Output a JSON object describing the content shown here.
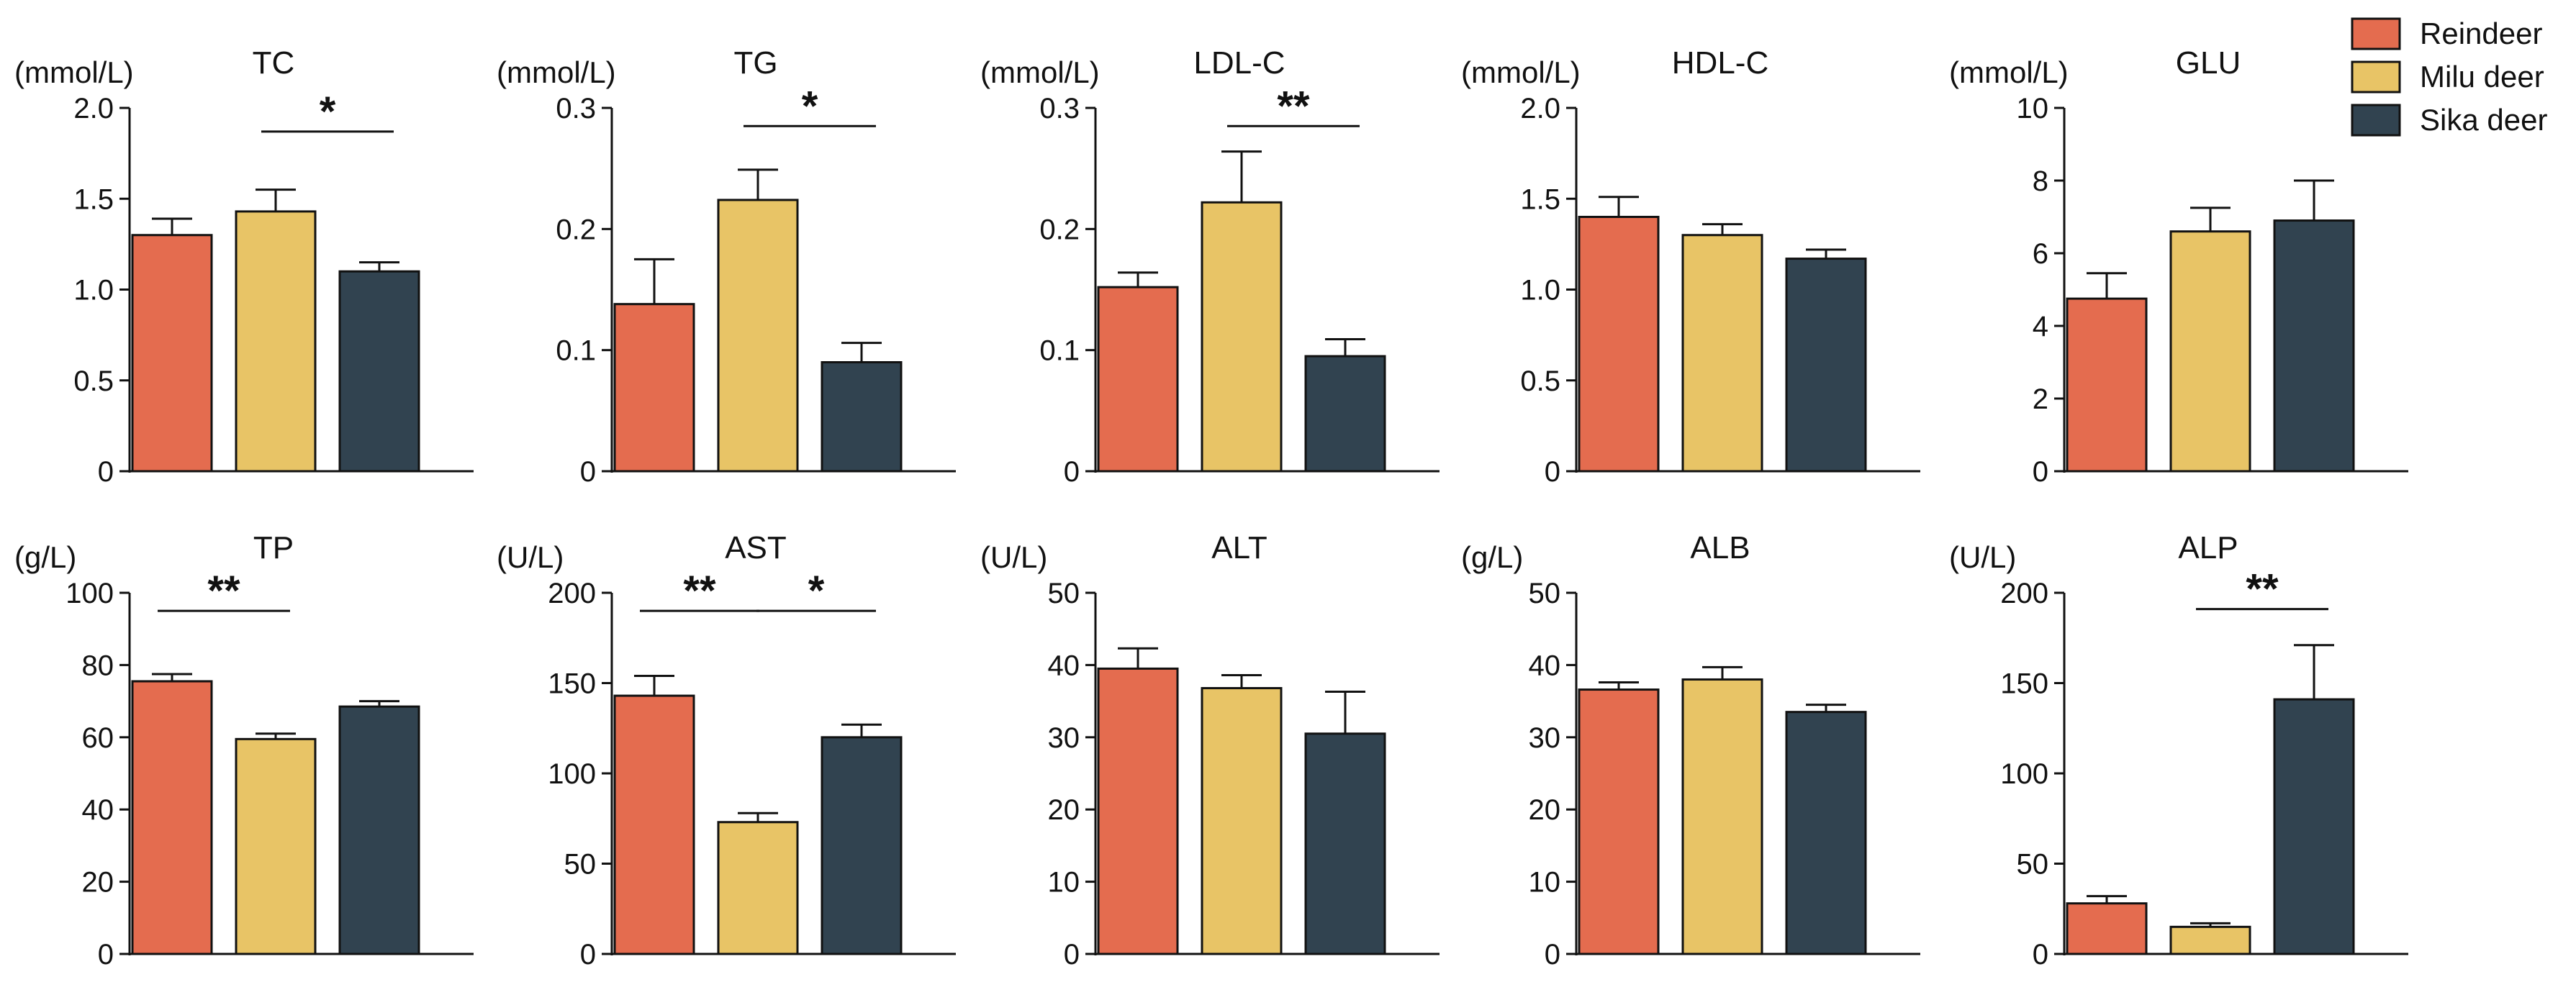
{
  "figure": {
    "legend": {
      "position": "top-right",
      "items": [
        {
          "label": "Reindeer",
          "color": "#E46C4F"
        },
        {
          "label": "Milu deer",
          "color": "#E8C466"
        },
        {
          "label": "Sika deer",
          "color": "#314350"
        }
      ]
    }
  },
  "chart_data": [
    {
      "type": "bar",
      "title": "TC",
      "unit": "(mmol/L)",
      "categories": [
        "Reindeer",
        "Milu deer",
        "Sika deer"
      ],
      "values": [
        1.3,
        1.43,
        1.1
      ],
      "errors": [
        0.09,
        0.12,
        0.05
      ],
      "ylim": [
        0,
        2.0
      ],
      "ticks": [
        0,
        0.5,
        1.0,
        1.5,
        2.0
      ],
      "tick_labels": [
        "0",
        "0.5",
        "1.0",
        "1.5",
        "2.0"
      ],
      "significance": [
        {
          "from": 1,
          "to": 2,
          "label": "*",
          "y": 1.87
        }
      ]
    },
    {
      "type": "bar",
      "title": "TG",
      "unit": "(mmol/L)",
      "categories": [
        "Reindeer",
        "Milu deer",
        "Sika deer"
      ],
      "values": [
        0.138,
        0.224,
        0.09
      ],
      "errors": [
        0.037,
        0.025,
        0.016
      ],
      "ylim": [
        0,
        0.3
      ],
      "ticks": [
        0,
        0.1,
        0.2,
        0.3
      ],
      "tick_labels": [
        "0",
        "0.1",
        "0.2",
        "0.3"
      ],
      "significance": [
        {
          "from": 1,
          "to": 2,
          "label": "*",
          "y": 0.285
        }
      ]
    },
    {
      "type": "bar",
      "title": "LDL-C",
      "unit": "(mmol/L)",
      "categories": [
        "Reindeer",
        "Milu deer",
        "Sika deer"
      ],
      "values": [
        0.152,
        0.222,
        0.095
      ],
      "errors": [
        0.012,
        0.042,
        0.014
      ],
      "ylim": [
        0,
        0.3
      ],
      "ticks": [
        0,
        0.1,
        0.2,
        0.3
      ],
      "tick_labels": [
        "0",
        "0.1",
        "0.2",
        "0.3"
      ],
      "significance": [
        {
          "from": 1,
          "to": 2,
          "label": "**",
          "y": 0.285
        }
      ]
    },
    {
      "type": "bar",
      "title": "HDL-C",
      "unit": "(mmol/L)",
      "categories": [
        "Reindeer",
        "Milu deer",
        "Sika deer"
      ],
      "values": [
        1.4,
        1.3,
        1.17
      ],
      "errors": [
        0.11,
        0.06,
        0.05
      ],
      "ylim": [
        0,
        2.0
      ],
      "ticks": [
        0,
        0.5,
        1.0,
        1.5,
        2.0
      ],
      "tick_labels": [
        "0",
        "0.5",
        "1.0",
        "1.5",
        "2.0"
      ],
      "significance": []
    },
    {
      "type": "bar",
      "title": "GLU",
      "unit": "(mmol/L)",
      "categories": [
        "Reindeer",
        "Milu deer",
        "Sika deer"
      ],
      "values": [
        4.75,
        6.6,
        6.9
      ],
      "errors": [
        0.7,
        0.65,
        1.1
      ],
      "ylim": [
        0,
        10
      ],
      "ticks": [
        0,
        2,
        4,
        6,
        8,
        10
      ],
      "tick_labels": [
        "0",
        "2",
        "4",
        "6",
        "8",
        "10"
      ],
      "significance": []
    },
    {
      "type": "bar",
      "title": "TP",
      "unit": "(g/L)",
      "categories": [
        "Reindeer",
        "Milu deer",
        "Sika deer"
      ],
      "values": [
        75.5,
        59.5,
        68.5
      ],
      "errors": [
        2.0,
        1.5,
        1.5
      ],
      "ylim": [
        0,
        100
      ],
      "ticks": [
        0,
        20,
        40,
        60,
        80,
        100
      ],
      "tick_labels": [
        "0",
        "20",
        "40",
        "60",
        "80",
        "100"
      ],
      "significance": [
        {
          "from": 0,
          "to": 1,
          "label": "**",
          "y": 95
        }
      ]
    },
    {
      "type": "bar",
      "title": "AST",
      "unit": "(U/L)",
      "categories": [
        "Reindeer",
        "Milu deer",
        "Sika deer"
      ],
      "values": [
        143,
        73,
        120
      ],
      "errors": [
        11,
        5,
        7
      ],
      "ylim": [
        0,
        200
      ],
      "ticks": [
        0,
        50,
        100,
        150,
        200
      ],
      "tick_labels": [
        "0",
        "50",
        "100",
        "150",
        "200"
      ],
      "significance": [
        {
          "from": 0,
          "to": 1,
          "label": "**",
          "y": 190
        },
        {
          "from": 1,
          "to": 2,
          "label": "*",
          "y": 190
        }
      ]
    },
    {
      "type": "bar",
      "title": "ALT",
      "unit": "(U/L)",
      "categories": [
        "Reindeer",
        "Milu deer",
        "Sika deer"
      ],
      "values": [
        39.5,
        36.8,
        30.5
      ],
      "errors": [
        2.8,
        1.8,
        5.8
      ],
      "ylim": [
        0,
        50
      ],
      "ticks": [
        0,
        10,
        20,
        30,
        40,
        50
      ],
      "tick_labels": [
        "0",
        "10",
        "20",
        "30",
        "40",
        "50"
      ],
      "significance": []
    },
    {
      "type": "bar",
      "title": "ALB",
      "unit": "(g/L)",
      "categories": [
        "Reindeer",
        "Milu deer",
        "Sika deer"
      ],
      "values": [
        36.6,
        38,
        33.5
      ],
      "errors": [
        1.0,
        1.7,
        1.0
      ],
      "ylim": [
        0,
        50
      ],
      "ticks": [
        0,
        10,
        20,
        30,
        40,
        50
      ],
      "tick_labels": [
        "0",
        "10",
        "20",
        "30",
        "40",
        "50"
      ],
      "significance": []
    },
    {
      "type": "bar",
      "title": "ALP",
      "unit": "(U/L)",
      "categories": [
        "Reindeer",
        "Milu deer",
        "Sika deer"
      ],
      "values": [
        28,
        15,
        141
      ],
      "errors": [
        4,
        2,
        30
      ],
      "ylim": [
        0,
        200
      ],
      "ticks": [
        0,
        50,
        100,
        150,
        200
      ],
      "tick_labels": [
        "0",
        "50",
        "100",
        "150",
        "200"
      ],
      "significance": [
        {
          "from": 1,
          "to": 2,
          "label": "**",
          "y": 191
        }
      ]
    }
  ]
}
